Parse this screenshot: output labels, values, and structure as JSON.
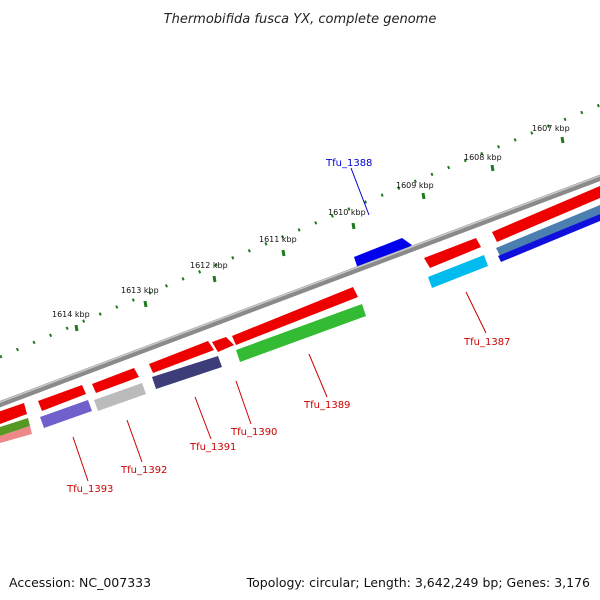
{
  "title": "Thermobifida fusca YX, complete genome",
  "footer": {
    "accession": "Accession: NC_007333",
    "topology": "Topology: circular; Length: 3,642,249 bp; Genes: 3,176"
  },
  "colors": {
    "backbone": "#8a8a8a",
    "tick": "#1f7a1f",
    "forward_label": "#cc0000",
    "reverse_label": "#0000cc"
  },
  "scale_labels": [
    "1607 kbp",
    "1608 kbp",
    "1609 kbp",
    "1610 kbp",
    "1611 kbp",
    "1612 kbp",
    "1613 kbp",
    "1614 kbp"
  ],
  "gene_labels": [
    {
      "id": "Tfu_1388",
      "text": "Tfu_1388",
      "strand": "reverse"
    },
    {
      "id": "Tfu_1387",
      "text": "Tfu_1387",
      "strand": "forward"
    },
    {
      "id": "Tfu_1389",
      "text": "Tfu_1389",
      "strand": "forward"
    },
    {
      "id": "Tfu_1390",
      "text": "Tfu_1390",
      "strand": "forward"
    },
    {
      "id": "Tfu_1391",
      "text": "Tfu_1391",
      "strand": "forward"
    },
    {
      "id": "Tfu_1392",
      "text": "Tfu_1392",
      "strand": "forward"
    },
    {
      "id": "Tfu_1393",
      "text": "Tfu_1393",
      "strand": "forward"
    }
  ],
  "feature_colors": {
    "cds": "#ee0000",
    "Tfu_1388": "#0000ee",
    "Tfu_1387": "#00bbee",
    "Tfu_1386a": "#4a7fb0",
    "Tfu_1386b": "#1010dd",
    "Tfu_1389": "#33bb33",
    "Tfu_1391": "#3d3d7a",
    "Tfu_1392": "#bbbbbb",
    "Tfu_1393": "#7060cc",
    "Tfu_1394a": "#559922",
    "Tfu_1394b": "#ee8888"
  }
}
